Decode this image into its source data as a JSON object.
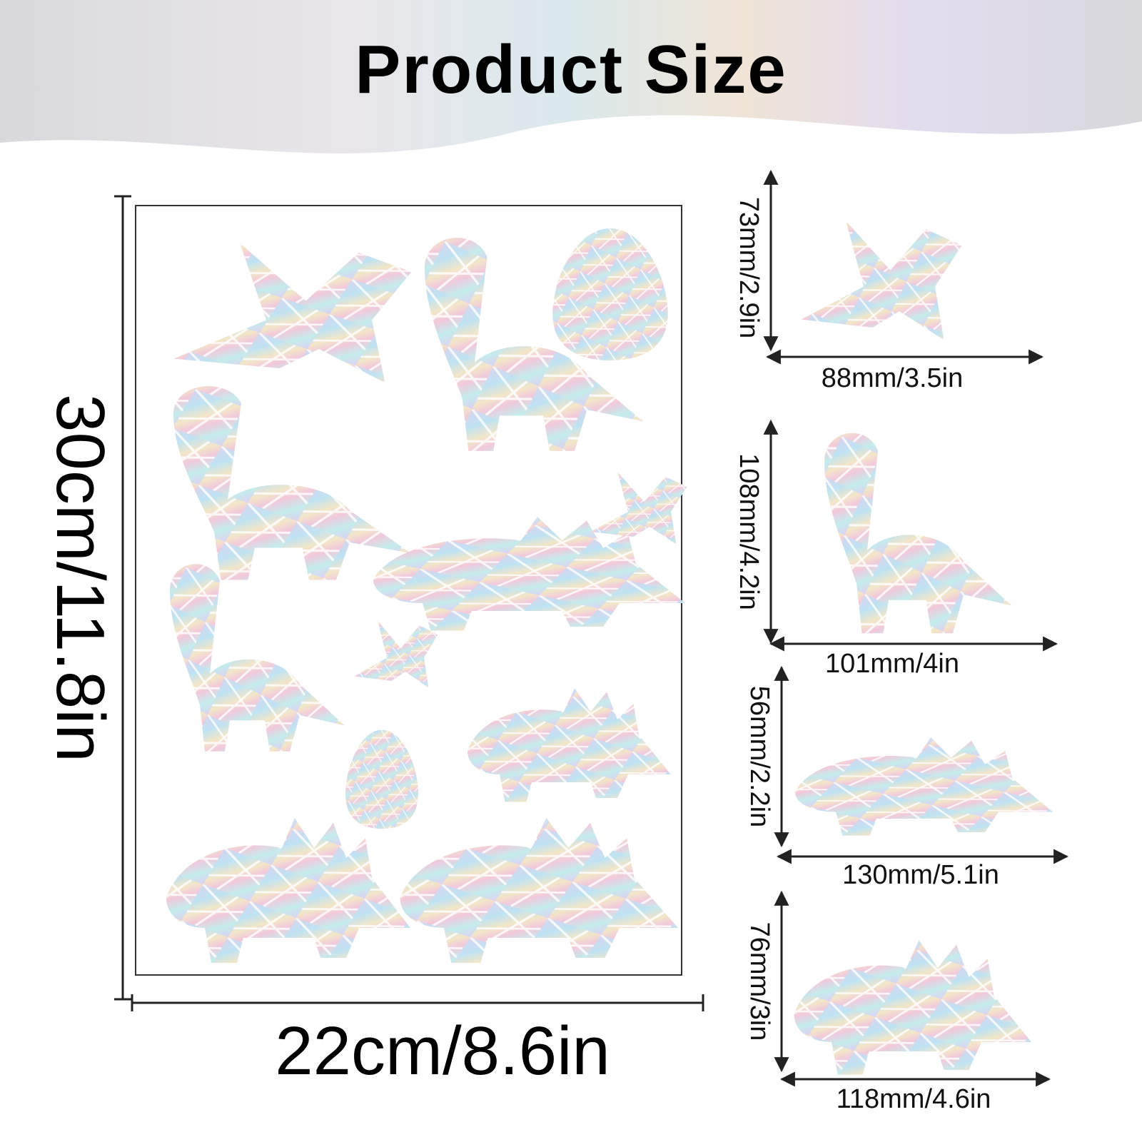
{
  "header": {
    "title": "Product Size"
  },
  "sheet": {
    "height_label": "30cm/11.8in",
    "width_label": "22cm/8.6in"
  },
  "items": [
    {
      "height_label": "73mm/2.9in",
      "width_label": "88mm/3.5in"
    },
    {
      "height_label": "108mm/4.2in",
      "width_label": "101mm/4in"
    },
    {
      "height_label": "56mm/2.2in",
      "width_label": "130mm/5.1in"
    },
    {
      "height_label": "76mm/3in",
      "width_label": "118mm/4.6in"
    }
  ]
}
